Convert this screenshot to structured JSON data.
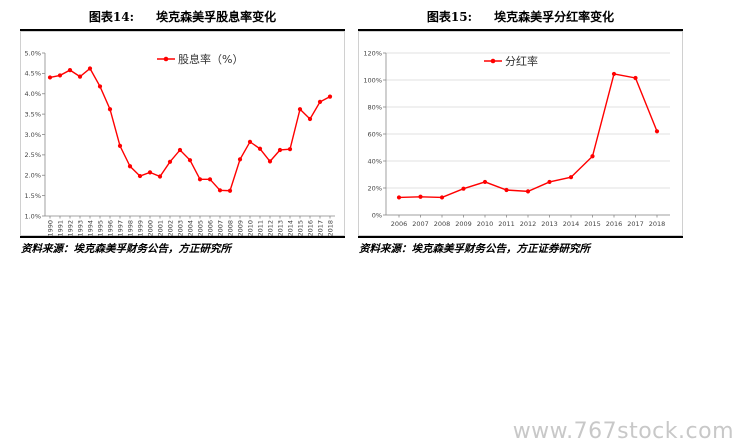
{
  "panels": [
    {
      "title_num": "图表14:",
      "title_text": "埃克森美孚股息率变化",
      "source": "资料来源：埃克森美孚财务公告，方正研究所",
      "chart_data": {
        "type": "line",
        "legend_position": "top-center",
        "grid": false,
        "series": [
          {
            "name": "股息率（%）",
            "color": "#ff0000",
            "values": [
              4.4,
              4.45,
              4.58,
              4.42,
              4.62,
              4.18,
              3.62,
              2.72,
              2.22,
              1.98,
              2.07,
              1.97,
              2.33,
              2.62,
              2.37,
              1.9,
              1.9,
              1.63,
              1.62,
              2.39,
              2.82,
              2.65,
              2.34,
              2.62,
              2.64,
              3.62,
              3.38,
              3.8,
              3.93
            ]
          }
        ],
        "categories": [
          "1990",
          "1991",
          "1992",
          "1993",
          "1994",
          "1995",
          "1996",
          "1997",
          "1998",
          "1999",
          "2000",
          "2001",
          "2002",
          "2003",
          "2004",
          "2005",
          "2006",
          "2007",
          "2008",
          "2009",
          "2010",
          "2011",
          "2012",
          "2013",
          "2014",
          "2015",
          "2016",
          "2017",
          "2018"
        ],
        "yticks": [
          "1.0%",
          "1.5%",
          "2.0%",
          "2.5%",
          "3.0%",
          "3.5%",
          "4.0%",
          "4.5%",
          "5.0%"
        ],
        "ylim": [
          1.0,
          5.0
        ],
        "xlabel_rotated": true
      }
    },
    {
      "title_num": "图表15:",
      "title_text": "埃克森美孚分红率变化",
      "source": "资料来源：埃克森美孚财务公告，方正证券研究所",
      "chart_data": {
        "type": "line",
        "legend_position": "top-left",
        "grid": true,
        "series": [
          {
            "name": "分红率",
            "color": "#ff0000",
            "values": [
              13,
              13.5,
              13,
              19.5,
              24.5,
              18.5,
              17.5,
              24.5,
              28,
              43.5,
              104.5,
              101.5,
              62
            ]
          }
        ],
        "categories": [
          "2006",
          "2007",
          "2008",
          "2009",
          "2010",
          "2011",
          "2012",
          "2013",
          "2014",
          "2015",
          "2016",
          "2017",
          "2018"
        ],
        "yticks": [
          "0%",
          "20%",
          "40%",
          "60%",
          "80%",
          "100%",
          "120%"
        ],
        "ylim": [
          0,
          120
        ],
        "xlabel_rotated": false
      }
    }
  ],
  "watermark": "www.767stock.com"
}
